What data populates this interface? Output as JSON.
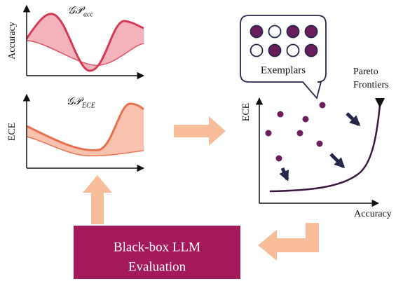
{
  "surrogates": [
    {
      "title": {
        "label": "𝒢𝒫",
        "subscript": "acc"
      },
      "y_label": "Accuracy"
    },
    {
      "title": {
        "label": "𝒢𝒫",
        "subscript": "ECE"
      },
      "y_label": "ECE"
    }
  ],
  "exemplars": {
    "label": "Exemplars"
  },
  "objective_plot": {
    "y_label": "ECE",
    "x_label": "Accuracy",
    "frontier_label": [
      "Pareto",
      "Frontiers"
    ]
  },
  "evaluator": {
    "label": [
      "Black-box LLM",
      "Evaluation"
    ]
  }
}
